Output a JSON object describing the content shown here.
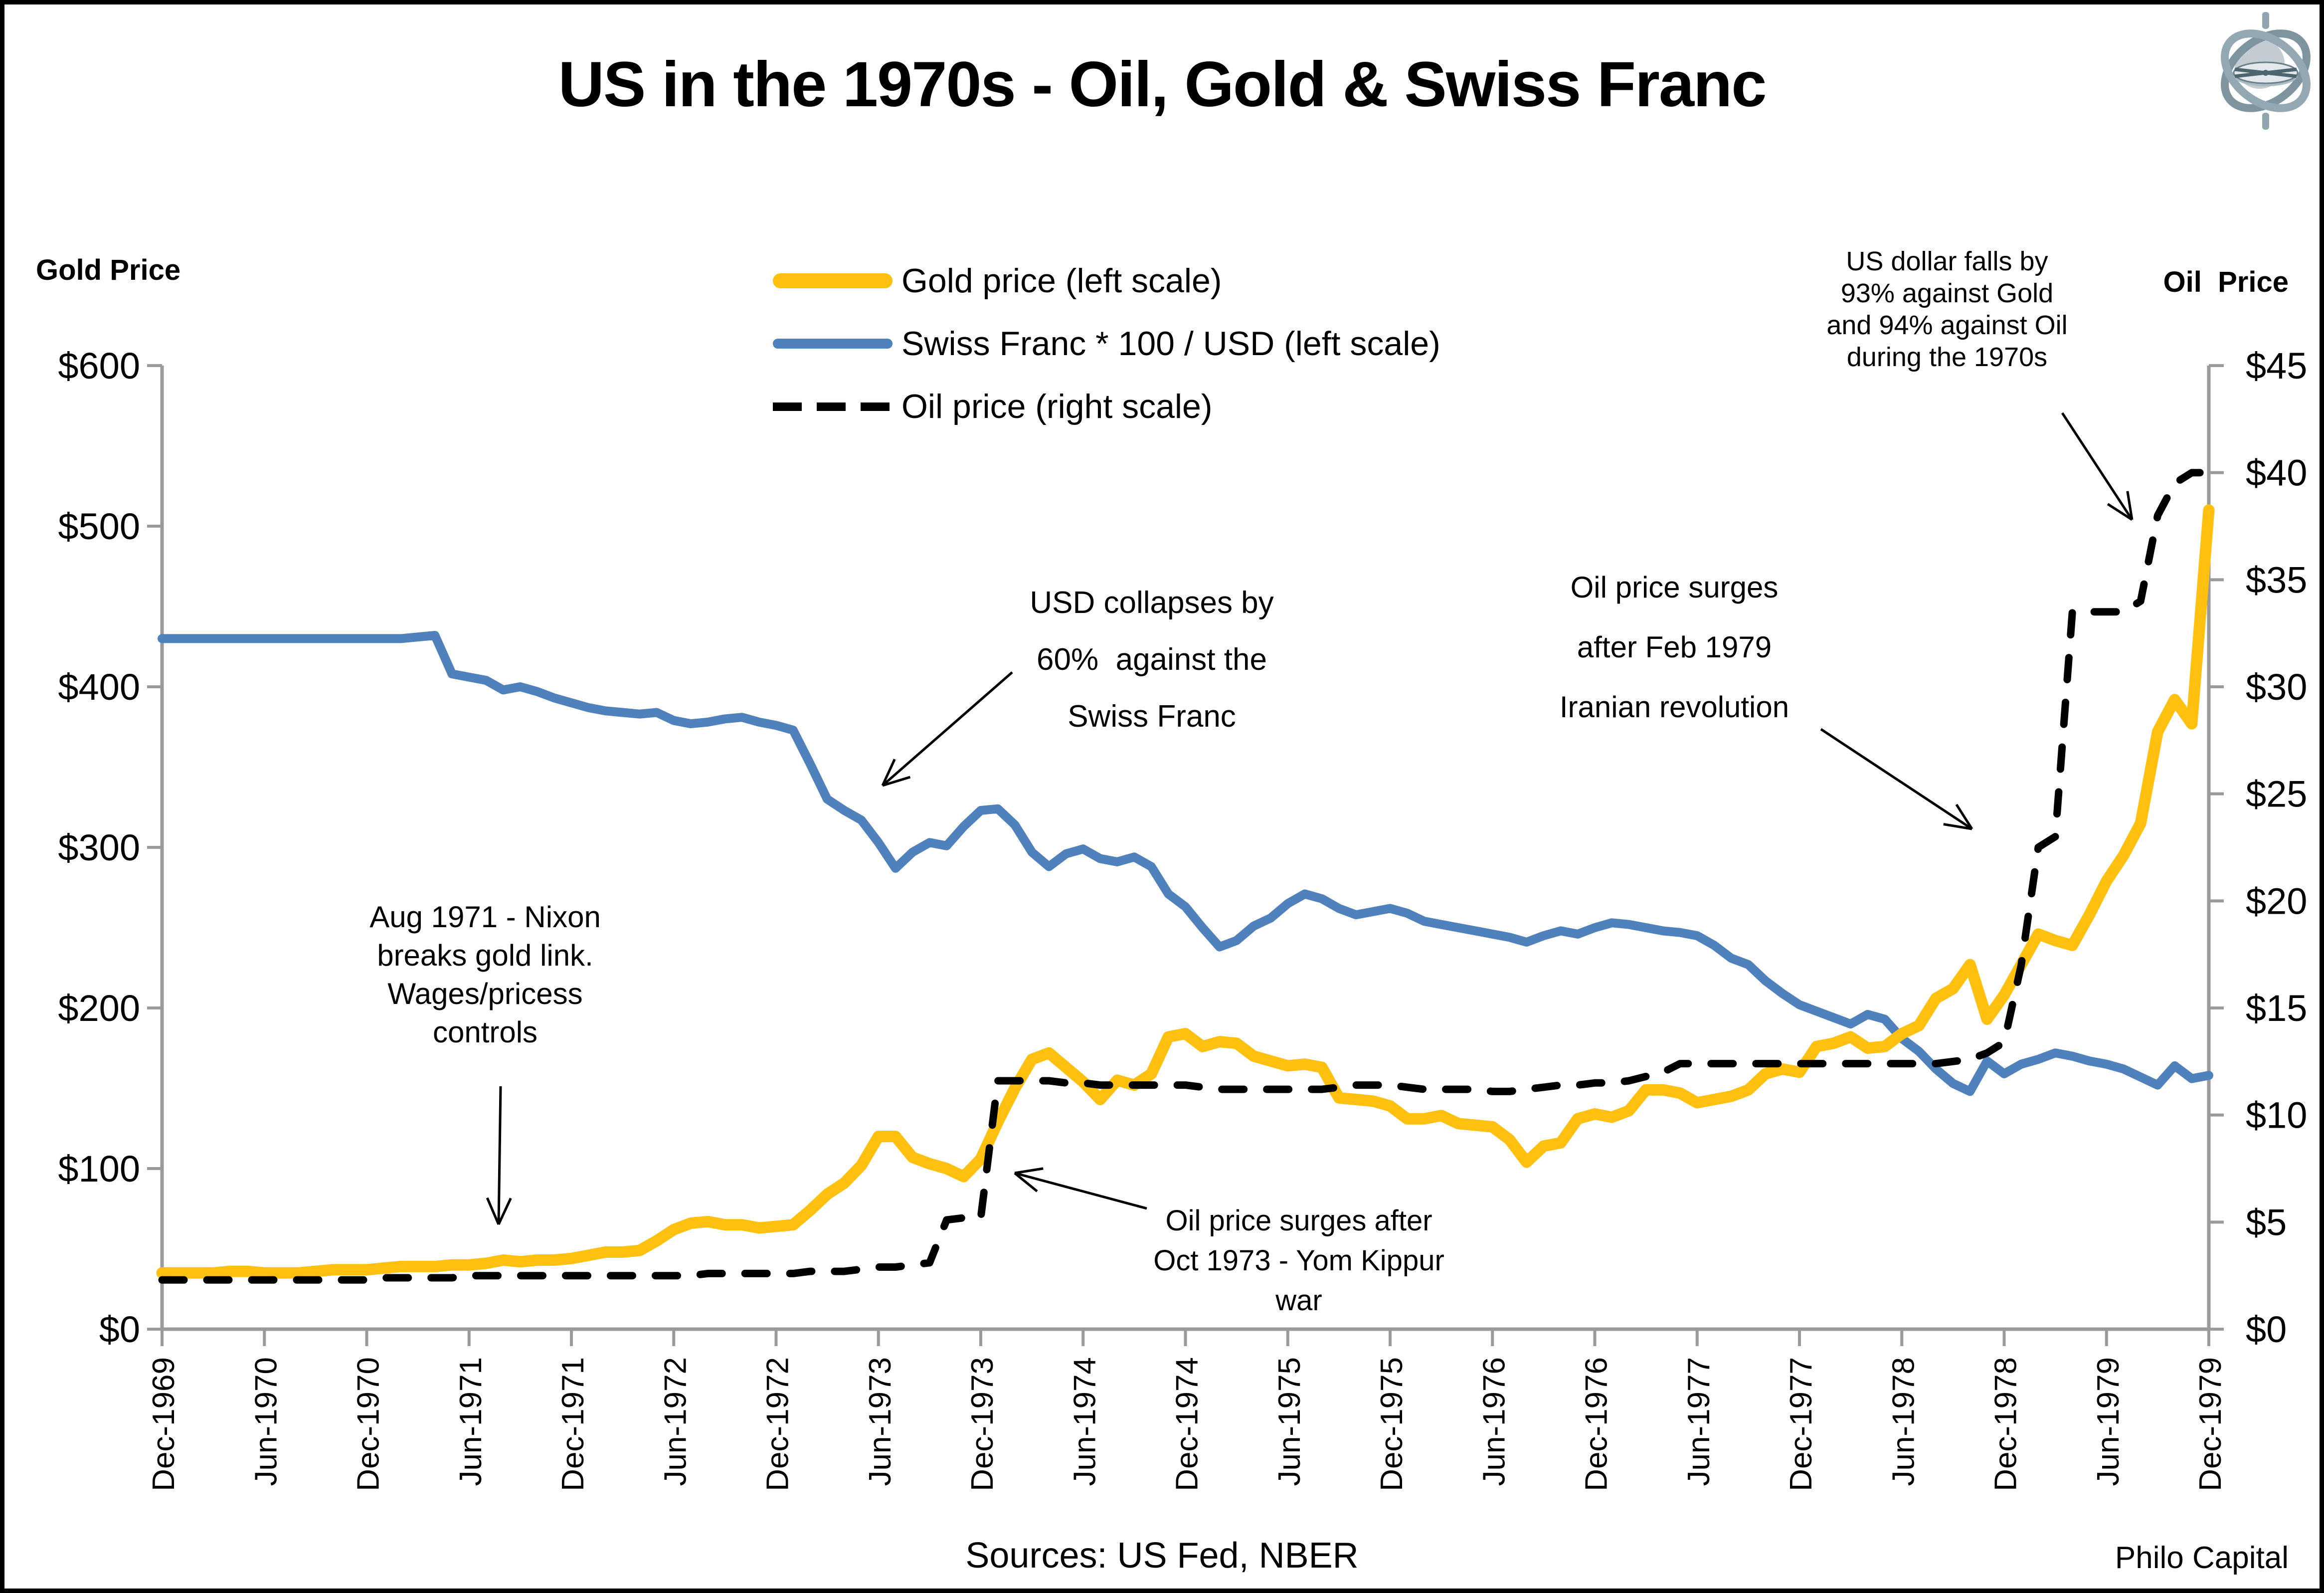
{
  "title": "US in the 1970s - Oil, Gold & Swiss Franc",
  "branding": {
    "source_note": "Sources: US Fed, NBER",
    "company": "Philo Capital",
    "logo": "gyroscope-logo"
  },
  "chart_data": {
    "type": "line",
    "title": "US in the 1970s - Oil, Gold & Swiss Franc",
    "x_start": "Dec-1969",
    "x_end": "Dec-1979",
    "x_interval": "monthly",
    "x_tick_labels": [
      "Dec-1969",
      "Jun-1970",
      "Dec-1970",
      "Jun-1971",
      "Dec-1971",
      "Jun-1972",
      "Dec-1972",
      "Jun-1973",
      "Dec-1973",
      "Jun-1974",
      "Dec-1974",
      "Jun-1975",
      "Dec-1975",
      "Jun-1976",
      "Dec-1976",
      "Jun-1977",
      "Dec-1977",
      "Jun-1978",
      "Dec-1978",
      "Jun-1979",
      "Dec-1979"
    ],
    "grid": false,
    "legend_position": "top-center",
    "left_axis": {
      "title": "Gold Price",
      "range": [
        0,
        600
      ],
      "tick_step": 100,
      "tick_labels": [
        "$0",
        "$100",
        "$200",
        "$300",
        "$400",
        "$500",
        "$600"
      ]
    },
    "right_axis": {
      "title": "Oil  Price",
      "range": [
        0,
        45
      ],
      "tick_step": 5,
      "tick_labels": [
        "$0",
        "$5",
        "$10",
        "$15",
        "$20",
        "$25",
        "$30",
        "$35",
        "$40",
        "$45"
      ]
    },
    "colors": {
      "gold": "#FFC010",
      "swiss_franc": "#4F81BD",
      "oil": "#000000",
      "axis": "#9A9A9A"
    },
    "legend": [
      {
        "label": "Gold price (left scale)",
        "swatch": "thick-gold-line"
      },
      {
        "label": "Swiss Franc * 100 / USD (left scale)",
        "swatch": "blue-line"
      },
      {
        "label": "Oil price (right scale)",
        "swatch": "black-dashed-line"
      }
    ],
    "series": [
      {
        "name": "Swiss Franc * 100 / USD",
        "axis": "left",
        "color": "#4F81BD",
        "width": 18,
        "dash": null,
        "values": [
          430,
          430,
          430,
          430,
          430,
          430,
          430,
          430,
          430,
          430,
          430,
          430,
          430,
          430,
          430,
          431,
          432,
          408,
          406,
          404,
          398,
          400,
          397,
          393,
          390,
          387,
          385,
          384,
          383,
          384,
          379,
          377,
          378,
          380,
          381,
          378,
          376,
          373,
          352,
          330,
          323,
          317,
          303,
          287,
          297,
          303,
          301,
          313,
          323,
          324,
          314,
          297,
          288,
          296,
          299,
          293,
          291,
          294,
          288,
          271,
          263,
          250,
          238,
          242,
          251,
          256,
          265,
          271,
          268,
          262,
          258,
          260,
          262,
          259,
          254,
          252,
          250,
          248,
          246,
          244,
          241,
          245,
          248,
          246,
          250,
          253,
          252,
          250,
          248,
          247,
          245,
          239,
          231,
          227,
          217,
          209,
          202,
          198,
          194,
          190,
          196,
          193,
          181,
          173,
          162,
          153,
          148,
          167,
          159,
          165,
          168,
          172,
          170,
          167,
          165,
          162,
          157,
          152,
          164,
          156,
          158
        ]
      },
      {
        "name": "Gold price",
        "axis": "left",
        "color": "#FFC010",
        "width": 23,
        "dash": null,
        "values": [
          35,
          35,
          35,
          35,
          36,
          36,
          35,
          35,
          35,
          36,
          37,
          37,
          37,
          38,
          39,
          39,
          39,
          40,
          40,
          41,
          43,
          42,
          43,
          43,
          44,
          46,
          48,
          48,
          49,
          55,
          62,
          66,
          67,
          65,
          65,
          63,
          64,
          65,
          74,
          84,
          91,
          102,
          120,
          120,
          107,
          103,
          100,
          95,
          106,
          129,
          150,
          168,
          172,
          163,
          154,
          143,
          155,
          152,
          159,
          182,
          184,
          176,
          179,
          178,
          170,
          167,
          164,
          165,
          163,
          144,
          143,
          142,
          139,
          131,
          131,
          133,
          128,
          127,
          126,
          118,
          104,
          114,
          116,
          131,
          134,
          132,
          136,
          149,
          149,
          147,
          141,
          143,
          145,
          149,
          159,
          162,
          160,
          176,
          178,
          182,
          175,
          176,
          184,
          189,
          206,
          212,
          227,
          193,
          208,
          227,
          246,
          242,
          239,
          258,
          279,
          295,
          315,
          372,
          392,
          377,
          510
        ]
      },
      {
        "name": "Oil price",
        "axis": "right",
        "color": "#000000",
        "width": 15,
        "dash": "44 46",
        "values": [
          2.3,
          2.3,
          2.3,
          2.3,
          2.3,
          2.3,
          2.3,
          2.3,
          2.3,
          2.3,
          2.3,
          2.3,
          2.3,
          2.4,
          2.4,
          2.4,
          2.4,
          2.4,
          2.5,
          2.5,
          2.5,
          2.5,
          2.5,
          2.5,
          2.5,
          2.5,
          2.5,
          2.5,
          2.5,
          2.5,
          2.5,
          2.5,
          2.6,
          2.6,
          2.6,
          2.6,
          2.6,
          2.6,
          2.7,
          2.7,
          2.7,
          2.8,
          2.9,
          2.9,
          3.0,
          3.1,
          5.1,
          5.2,
          5.2,
          11.6,
          11.6,
          11.6,
          11.6,
          11.5,
          11.5,
          11.4,
          11.4,
          11.4,
          11.4,
          11.4,
          11.4,
          11.3,
          11.2,
          11.2,
          11.2,
          11.2,
          11.2,
          11.2,
          11.2,
          11.3,
          11.4,
          11.4,
          11.4,
          11.3,
          11.2,
          11.2,
          11.2,
          11.2,
          11.1,
          11.1,
          11.2,
          11.3,
          11.4,
          11.4,
          11.5,
          11.5,
          11.6,
          11.8,
          12.0,
          12.4,
          12.4,
          12.4,
          12.4,
          12.4,
          12.4,
          12.4,
          12.4,
          12.4,
          12.4,
          12.4,
          12.4,
          12.4,
          12.4,
          12.4,
          12.4,
          12.5,
          12.6,
          12.9,
          13.4,
          17.0,
          22.5,
          23.0,
          33.5,
          33.5,
          33.5,
          33.5,
          34.0,
          38.0,
          39.5,
          40.0,
          40.0
        ]
      }
    ],
    "annotations": [
      {
        "id": "nixon",
        "lines": [
          "Aug 1971 - Nixon",
          "breaks gold link.",
          "Wages/pricess",
          "controls"
        ],
        "arrow": {
          "from": [
            1004,
            2178
          ],
          "to": [
            1000,
            2455
          ]
        }
      },
      {
        "id": "usd-collapse",
        "lines": [
          "USD collapses by",
          "60%  against the",
          "Swiss Franc"
        ],
        "arrow": {
          "from": [
            2030,
            1348
          ],
          "to": [
            1770,
            1575
          ]
        }
      },
      {
        "id": "yom-kippur",
        "lines": [
          "Oil price surges after",
          "Oct 1973 - Yom Kippur",
          "war"
        ],
        "arrow": {
          "from": [
            2300,
            2423
          ],
          "to": [
            2035,
            2352
          ]
        }
      },
      {
        "id": "iranian-revolution",
        "lines": [
          "Oil price surges",
          "after Feb 1979",
          "Iranian revolution"
        ],
        "arrow": {
          "from": [
            3652,
            1462
          ],
          "to": [
            3955,
            1662
          ]
        }
      },
      {
        "id": "dollar-falls",
        "lines": [
          "US dollar falls by",
          "93% against Gold",
          "and 94% against Oil",
          "during the 1970s"
        ],
        "arrow": {
          "from": [
            4136,
            828
          ],
          "to": [
            4276,
            1042
          ]
        }
      }
    ]
  }
}
